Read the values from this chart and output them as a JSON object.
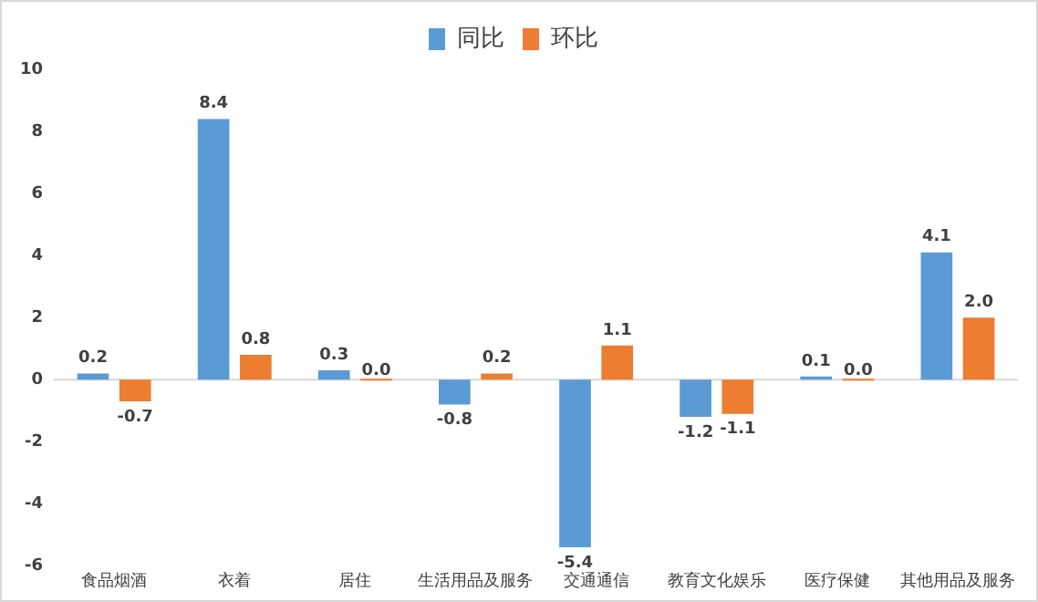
{
  "chart_data": {
    "type": "bar",
    "categories": [
      "食品烟酒",
      "衣着",
      "居住",
      "生活用品及服务",
      "交通通信",
      "教育文化娱乐",
      "医疗保健",
      "其他用品及服务"
    ],
    "series": [
      {
        "name": "同比",
        "color": "#5b9bd5",
        "values": [
          0.2,
          8.4,
          0.3,
          -0.8,
          -5.4,
          -1.2,
          0.1,
          4.1
        ],
        "value_labels": [
          "0.2",
          "8.4",
          "0.3",
          "-0.8",
          "-5.4",
          "-1.2",
          "0.1",
          "4.1"
        ]
      },
      {
        "name": "环比",
        "color": "#ed7d31",
        "values": [
          -0.7,
          0.8,
          0.0,
          0.2,
          1.1,
          -1.1,
          0.0,
          2.0
        ],
        "value_labels": [
          "-0.7",
          "0.8",
          "0.0",
          "0.2",
          "1.1",
          "-1.1",
          "0.0",
          "2.0"
        ]
      }
    ],
    "ylim": [
      -6,
      10
    ],
    "yticks": [
      -6,
      -4,
      -2,
      0,
      2,
      4,
      6,
      8,
      10
    ],
    "ref_lines": [
      {
        "axis": "y",
        "value": 0,
        "color": "#d9d9d9"
      }
    ],
    "legend": "top"
  }
}
